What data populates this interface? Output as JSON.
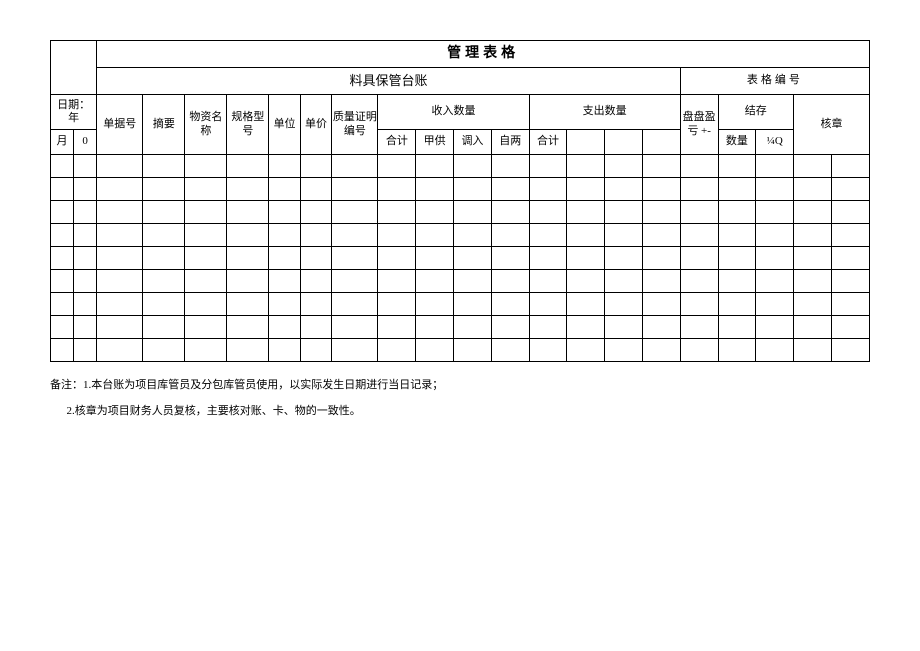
{
  "title": "管理表格",
  "subtitle": "料具保管台账",
  "form_no_label": "表格编号",
  "headers": {
    "date_label": "日期：",
    "year_unit": "年",
    "month_unit": "月",
    "zero": "0",
    "doc_no": "单据号",
    "summary": "摘要",
    "material_name": "物资名称",
    "spec_model": "规格型号",
    "unit": "单位",
    "unit_price": "单价",
    "quality_cert_no": "质量证明编号",
    "income_qty": "收入数量",
    "expend_qty": "支出数量",
    "inventory_adj": "盘盘盈亏 +-",
    "balance": "结存",
    "check_stamp": "核章",
    "total": "合计",
    "provided": "甲供",
    "transfer_in": "调入",
    "self_both": "自两",
    "qty": "数量",
    "amount": "¼Q"
  },
  "notes": {
    "prefix": "备注：",
    "line1": "1.本台账为项目库管员及分包库管员使用，以实际发生日期进行当日记录；",
    "line2": "2.核章为项目财务人员复核，主要核对账、卡、物的一致性。"
  },
  "body_row_count": 9,
  "column_count": 22
}
